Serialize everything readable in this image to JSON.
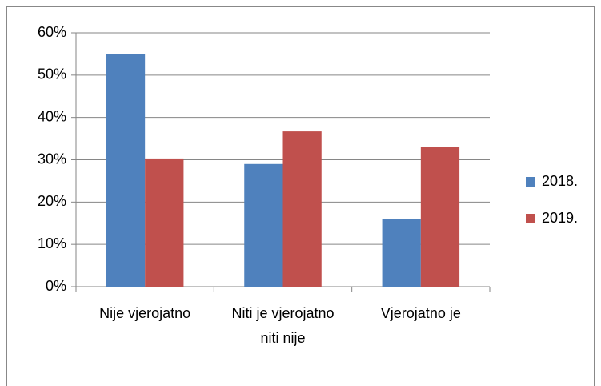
{
  "chart_data": {
    "type": "bar",
    "categories": [
      "Nije vjerojatno",
      "Niti je vjerojatno niti nije",
      "Vjerojatno je"
    ],
    "series": [
      {
        "name": "2018.",
        "color": "#4f81bd",
        "values": [
          55,
          29,
          16
        ]
      },
      {
        "name": "2019.",
        "color": "#c0504d",
        "values": [
          30.3,
          36.7,
          33
        ]
      }
    ],
    "ylim": [
      0,
      60
    ],
    "yticks": [
      {
        "value": 0,
        "label": "0%"
      },
      {
        "value": 10,
        "label": "10%"
      },
      {
        "value": 20,
        "label": "20%"
      },
      {
        "value": 30,
        "label": "30%"
      },
      {
        "value": 40,
        "label": "40%"
      },
      {
        "value": 50,
        "label": "50%"
      },
      {
        "value": 60,
        "label": "60%"
      }
    ],
    "grid": true,
    "legend": "right"
  }
}
